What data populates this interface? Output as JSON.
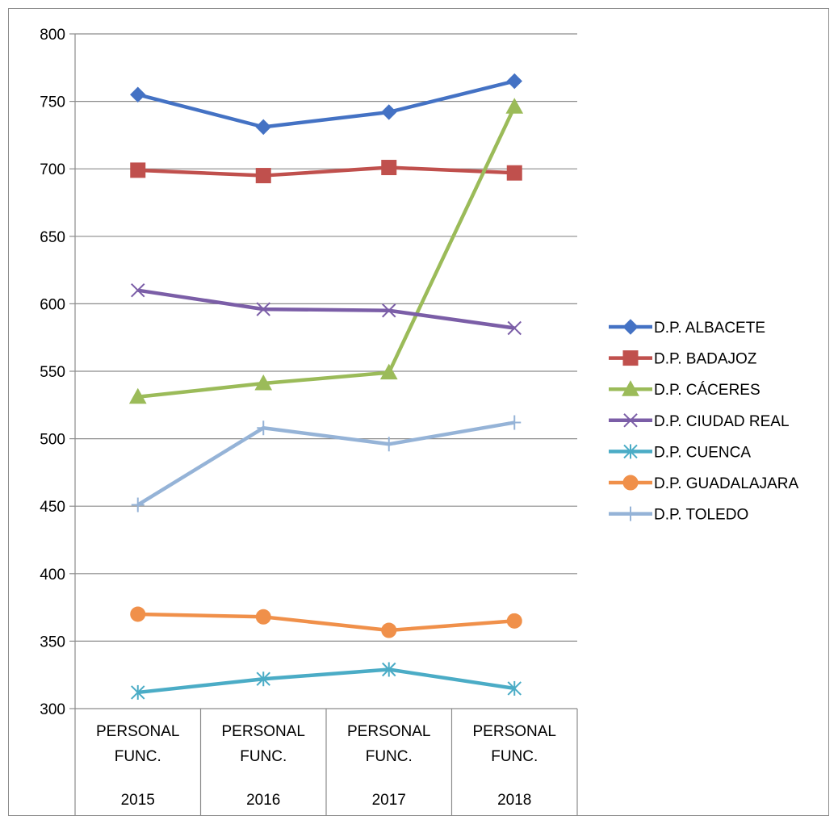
{
  "chart_data": {
    "type": "line",
    "title": "",
    "xlabel": "",
    "ylabel": "",
    "ylim": [
      300,
      800
    ],
    "yticks": [
      300,
      350,
      400,
      450,
      500,
      550,
      600,
      650,
      700,
      750,
      800
    ],
    "grid": true,
    "legend_position": "right",
    "categories": [
      {
        "lines": [
          "PERSONAL",
          "FUNC."
        ],
        "year": "2015"
      },
      {
        "lines": [
          "PERSONAL",
          "FUNC."
        ],
        "year": "2016"
      },
      {
        "lines": [
          "PERSONAL",
          "FUNC."
        ],
        "year": "2017"
      },
      {
        "lines": [
          "PERSONAL",
          "FUNC."
        ],
        "year": "2018"
      }
    ],
    "series": [
      {
        "name": "D.P. ALBACETE",
        "color": "#4472C4",
        "marker": "diamond",
        "values": [
          755,
          731,
          742,
          765
        ]
      },
      {
        "name": "D.P. BADAJOZ",
        "color": "#C0504D",
        "marker": "square",
        "values": [
          699,
          695,
          701,
          697
        ]
      },
      {
        "name": "D.P. CÁCERES",
        "color": "#9BBB59",
        "marker": "triangle",
        "values": [
          531,
          541,
          549,
          746
        ]
      },
      {
        "name": "D.P. CIUDAD REAL",
        "color": "#7B5EA7",
        "marker": "x",
        "values": [
          610,
          596,
          595,
          582
        ]
      },
      {
        "name": "D.P. CUENCA",
        "color": "#4BACC6",
        "marker": "star",
        "values": [
          312,
          322,
          329,
          315
        ]
      },
      {
        "name": "D.P. GUADALAJARA",
        "color": "#F0904A",
        "marker": "circle",
        "values": [
          370,
          368,
          358,
          365
        ]
      },
      {
        "name": "D.P. TOLEDO",
        "color": "#95B3D7",
        "marker": "plus",
        "values": [
          451,
          508,
          496,
          512
        ]
      }
    ]
  }
}
